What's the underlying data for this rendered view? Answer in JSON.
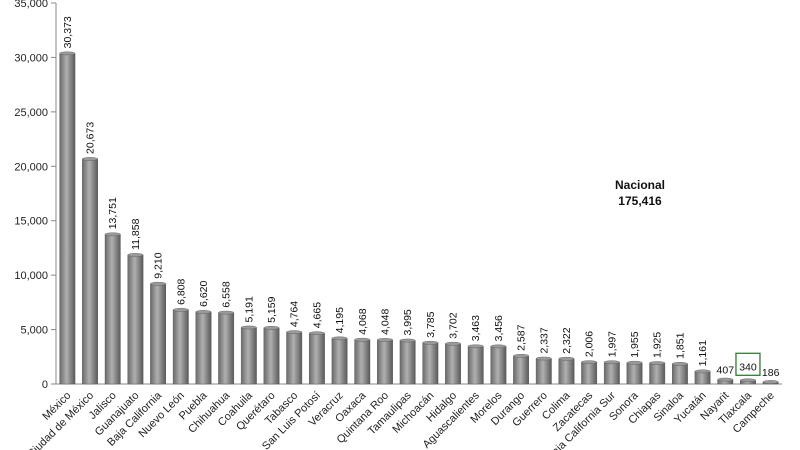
{
  "chart_data": {
    "type": "bar",
    "title": "",
    "xlabel": "",
    "ylabel": "",
    "ylim": [
      0,
      35000
    ],
    "yticks": [
      0,
      5000,
      10000,
      15000,
      20000,
      25000,
      30000,
      35000
    ],
    "ytick_labels": [
      "0",
      "5,000",
      "10,000",
      "15,000",
      "20,000",
      "25,000",
      "30,000",
      "35,000"
    ],
    "grid": false,
    "categories": [
      "México",
      "Ciudad de México",
      "Jalisco",
      "Guanajuato",
      "Baja California",
      "Nuevo León",
      "Puebla",
      "Chihuahua",
      "Coahuila",
      "Querétaro",
      "Tabasco",
      "San Luis Potosí",
      "Veracruz",
      "Oaxaca",
      "Quintana Roo",
      "Tamaulipas",
      "Michoacán",
      "Hidalgo",
      "Aguascalientes",
      "Morelos",
      "Durango",
      "Guerrero",
      "Colima",
      "Zacatecas",
      "Baja California Sur",
      "Sonora",
      "Chiapas",
      "Sinaloa",
      "Yucatán",
      "Nayarit",
      "Tlaxcala",
      "Campeche"
    ],
    "values": [
      30373,
      20673,
      13751,
      11858,
      9210,
      6808,
      6620,
      6558,
      5191,
      5159,
      4764,
      4665,
      4195,
      4068,
      4048,
      3995,
      3785,
      3702,
      3463,
      3456,
      2587,
      2337,
      2322,
      2006,
      1997,
      1955,
      1925,
      1851,
      1161,
      407,
      340,
      186
    ],
    "value_labels": [
      "30,373",
      "20,673",
      "13,751",
      "11,858",
      "9,210",
      "6,808",
      "6,620",
      "6,558",
      "5,191",
      "5,159",
      "4,764",
      "4,665",
      "4,195",
      "4,068",
      "4,048",
      "3,995",
      "3,785",
      "3,702",
      "3,463",
      "3,456",
      "2,587",
      "2,337",
      "2,322",
      "2,006",
      "1,997",
      "1,955",
      "1,925",
      "1,851",
      "1,161",
      "407",
      "340",
      "186"
    ],
    "highlighted_category": "Tlaxcala",
    "annotation": {
      "line1": "Nacional",
      "line2": "175,416"
    },
    "colors": {
      "bar": "#8c8c8c",
      "bar_dark": "#5e5e5e",
      "bar_light": "#b8b8b8",
      "highlight_box": "#2e7d32",
      "axis": "#888888"
    }
  }
}
